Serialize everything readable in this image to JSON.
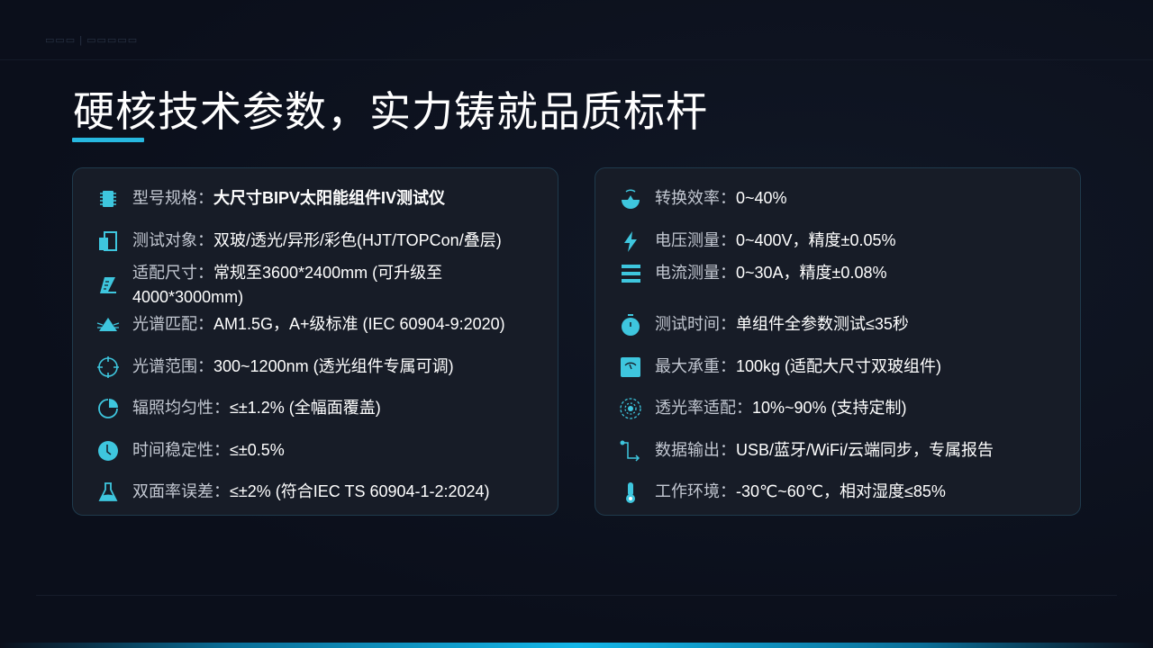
{
  "title": "硬核技术参数，实力铸就品质标杆",
  "accent": "#27b8e0",
  "left": [
    {
      "icon": "chip-icon",
      "label": "型号规格：",
      "value": "大尺寸BIPV太阳能组件IV测试仪"
    },
    {
      "icon": "panel-icon",
      "label": "测试对象：",
      "value": "双玻/透光/异形/彩色(HJT/TOPCon/叠层)"
    },
    {
      "icon": "ruler-icon",
      "label": "适配尺寸：",
      "value": "常规至3600*2400mm (可升级至 4000*3000mm)"
    },
    {
      "icon": "light-beam-icon",
      "label": "光谱匹配：",
      "value": "AM1.5G，A+级标准 (IEC 60904-9:2020)"
    },
    {
      "icon": "crosshair-icon",
      "label": "光谱范围：",
      "value": "300~1200nm (透光组件专属可调)"
    },
    {
      "icon": "pie-icon",
      "label": "辐照均匀性：",
      "value": "≤±1.2% (全幅面覆盖)"
    },
    {
      "icon": "clock-icon",
      "label": "时间稳定性：",
      "value": "≤±0.5%"
    },
    {
      "icon": "flask-icon",
      "label": "双面率误差：",
      "value": "≤±2% (符合IEC TS 60904-1-2:2024)"
    }
  ],
  "right": [
    {
      "icon": "sunrise-icon",
      "label": "转换效率：",
      "value": "0~40%"
    },
    {
      "icon": "lightning-icon",
      "label": "电压测量：",
      "value": "0~400V，精度±0.05%"
    },
    {
      "icon": "bars-icon",
      "label": "电流测量：",
      "value": "0~30A，精度±0.08%"
    },
    {
      "icon": "stopwatch-icon",
      "label": "测试时间：",
      "value": "单组件全参数测试≤35秒"
    },
    {
      "icon": "gauge-icon",
      "label": "最大承重：",
      "value": "100kg (适配大尺寸双玻组件)"
    },
    {
      "icon": "radar-icon",
      "label": "透光率适配：",
      "value": "10%~90% (支持定制)"
    },
    {
      "icon": "route-icon",
      "label": "数据输出：",
      "value": "USB/蓝牙/WiFi/云端同步，专属报告"
    },
    {
      "icon": "thermometer-icon",
      "label": "工作环境：",
      "value": "-30℃~60℃，相对湿度≤85%"
    }
  ]
}
